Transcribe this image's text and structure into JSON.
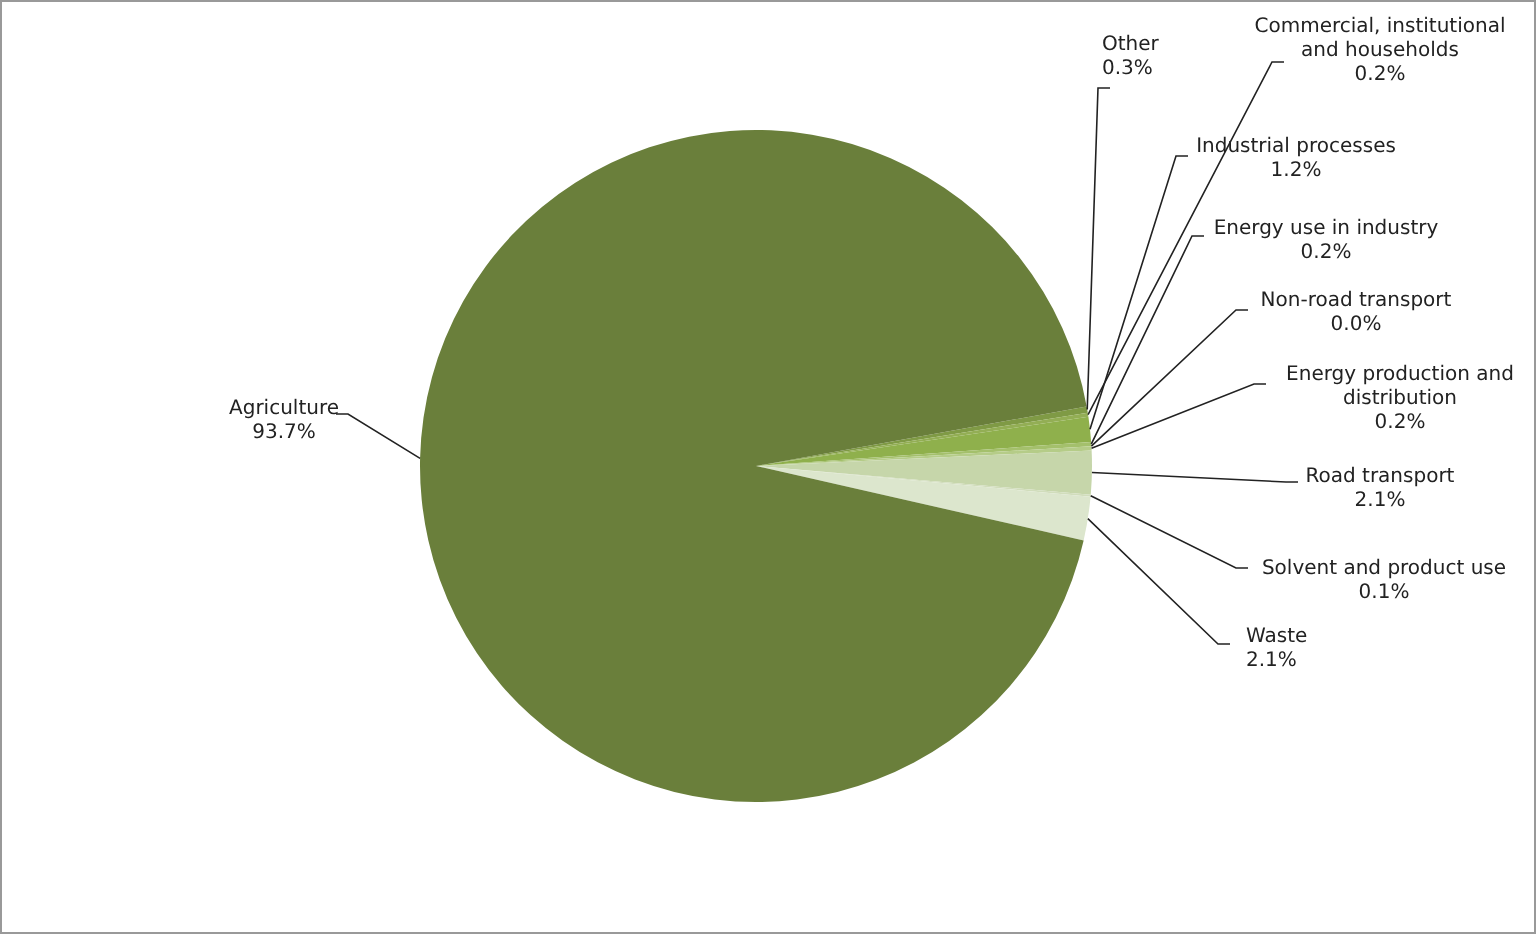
{
  "chart_data": {
    "type": "pie",
    "categories": [
      "Other",
      "Commercial, institutional and households",
      "Industrial  processes",
      "Energy use in industry",
      "Non-road transport",
      "Energy production and distribution",
      "Road transport",
      "Solvent and product use",
      "Waste",
      "Agriculture"
    ],
    "values": [
      0.3,
      0.2,
      1.2,
      0.2,
      0.0,
      0.2,
      2.1,
      0.1,
      2.1,
      93.7
    ],
    "value_labels": [
      "0.3%",
      "0.2%",
      "1.2%",
      "0.2%",
      "0.0%",
      "0.2%",
      "2.1%",
      "0.1%",
      "2.1%",
      "93.7%"
    ],
    "colors": [
      "#7f9a45",
      "#93ae55",
      "#8fb04c",
      "#a4c06c",
      "#adc67a",
      "#b5cc88",
      "#c6d6aa",
      "#d1ddbc",
      "#dce6cd",
      "#6a7f3b"
    ]
  }
}
